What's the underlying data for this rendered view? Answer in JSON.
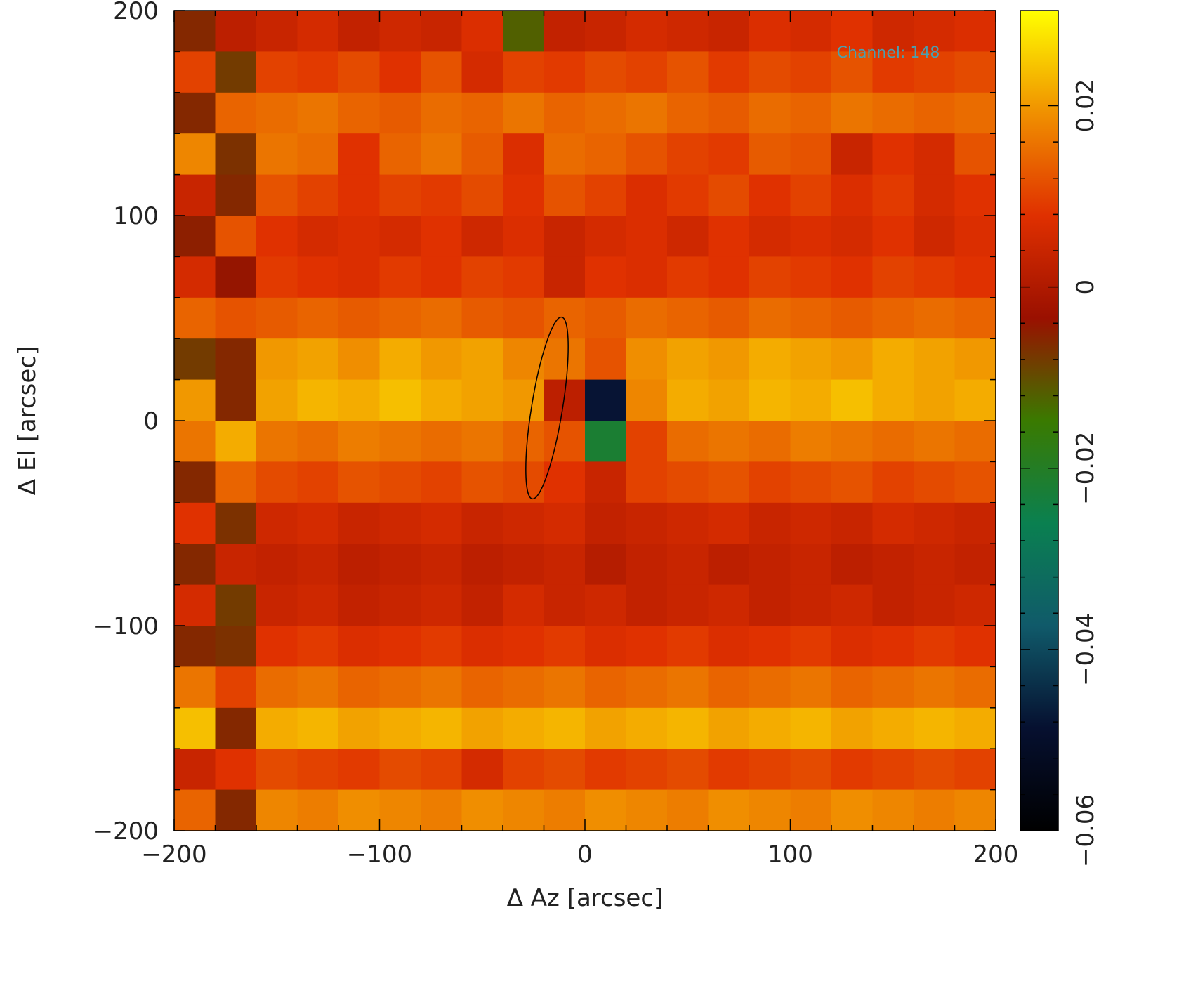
{
  "chart_data": {
    "type": "heatmap",
    "annotation": "Channel: 148",
    "xlabel": "Δ Az [arcsec]",
    "ylabel": "Δ El [arcsec]",
    "x": [
      -190,
      -170,
      -150,
      -130,
      -110,
      -90,
      -70,
      -50,
      -30,
      -10,
      10,
      30,
      50,
      70,
      90,
      110,
      130,
      150,
      170,
      190
    ],
    "y": [
      190,
      170,
      150,
      130,
      110,
      90,
      70,
      50,
      30,
      10,
      -10,
      -30,
      -50,
      -70,
      -90,
      -110,
      -130,
      -150,
      -170,
      -190
    ],
    "xlim": [
      -200,
      200
    ],
    "ylim": [
      -200,
      200
    ],
    "xticks": [
      {
        "value": -200,
        "label": "−200"
      },
      {
        "value": -100,
        "label": "−100"
      },
      0,
      100,
      200
    ],
    "yticks": [
      {
        "value": -200,
        "label": "−200"
      },
      {
        "value": -100,
        "label": "−100"
      },
      0,
      100,
      200
    ],
    "zlim": [
      -0.06,
      0.0305
    ],
    "zticks": [
      {
        "value": -0.06,
        "label": "−0.06"
      },
      {
        "value": -0.04,
        "label": "−0.04"
      },
      {
        "value": -0.02,
        "label": "−0.02"
      },
      0,
      0.02
    ],
    "colormap": [
      "#000000",
      "#061030",
      "#105a6a",
      "#0a8050",
      "#3a7a00",
      "#9a1000",
      "#e03000",
      "#f09000",
      "#ffff00"
    ],
    "values": [
      [
        -0.006,
        0.002,
        0.004,
        0.006,
        0.003,
        0.005,
        0.004,
        0.007,
        -0.012,
        0.003,
        0.004,
        0.006,
        0.005,
        0.004,
        0.007,
        0.006,
        0.008,
        0.005,
        0.006,
        0.007
      ],
      [
        0.01,
        -0.008,
        0.01,
        0.009,
        0.011,
        0.008,
        0.012,
        0.006,
        0.01,
        0.009,
        0.011,
        0.01,
        0.012,
        0.009,
        0.011,
        0.01,
        0.012,
        0.009,
        0.01,
        0.011
      ],
      [
        -0.006,
        0.014,
        0.015,
        0.016,
        0.014,
        0.013,
        0.015,
        0.014,
        0.016,
        0.014,
        0.015,
        0.016,
        0.014,
        0.013,
        0.015,
        0.014,
        0.016,
        0.015,
        0.014,
        0.015
      ],
      [
        0.018,
        -0.007,
        0.016,
        0.015,
        0.008,
        0.014,
        0.016,
        0.013,
        0.007,
        0.015,
        0.014,
        0.012,
        0.01,
        0.009,
        0.013,
        0.012,
        0.004,
        0.008,
        0.006,
        0.012
      ],
      [
        0.004,
        -0.006,
        0.012,
        0.01,
        0.008,
        0.01,
        0.009,
        0.011,
        0.008,
        0.012,
        0.01,
        0.007,
        0.009,
        0.011,
        0.008,
        0.01,
        0.007,
        0.009,
        0.006,
        0.008
      ],
      [
        -0.005,
        0.012,
        0.008,
        0.006,
        0.007,
        0.006,
        0.008,
        0.005,
        0.007,
        0.004,
        0.006,
        0.007,
        0.005,
        0.008,
        0.006,
        0.007,
        0.006,
        0.008,
        0.005,
        0.007
      ],
      [
        0.006,
        -0.004,
        0.009,
        0.008,
        0.007,
        0.009,
        0.008,
        0.01,
        0.009,
        0.004,
        0.008,
        0.007,
        0.009,
        0.008,
        0.01,
        0.009,
        0.008,
        0.01,
        0.009,
        0.008
      ],
      [
        0.014,
        0.012,
        0.013,
        0.014,
        0.013,
        0.014,
        0.015,
        0.013,
        0.012,
        0.014,
        0.013,
        0.015,
        0.014,
        0.013,
        0.015,
        0.014,
        0.013,
        0.014,
        0.015,
        0.014
      ],
      [
        -0.008,
        -0.006,
        0.02,
        0.021,
        0.019,
        0.022,
        0.02,
        0.021,
        0.018,
        0.016,
        0.012,
        0.019,
        0.021,
        0.02,
        0.022,
        0.021,
        0.02,
        0.022,
        0.021,
        0.02
      ],
      [
        0.02,
        -0.006,
        0.021,
        0.023,
        0.022,
        0.024,
        0.022,
        0.021,
        0.02,
        0.002,
        -0.048,
        0.018,
        0.022,
        0.021,
        0.023,
        0.022,
        0.024,
        0.022,
        0.021,
        0.022
      ],
      [
        0.016,
        0.022,
        0.016,
        0.015,
        0.017,
        0.016,
        0.015,
        0.016,
        0.014,
        0.012,
        -0.022,
        0.01,
        0.015,
        0.016,
        0.015,
        0.017,
        0.016,
        0.015,
        0.016,
        0.015
      ],
      [
        -0.006,
        0.014,
        0.011,
        0.01,
        0.012,
        0.011,
        0.01,
        0.012,
        0.011,
        0.008,
        0.004,
        0.01,
        0.011,
        0.012,
        0.01,
        0.011,
        0.012,
        0.01,
        0.011,
        0.012
      ],
      [
        0.008,
        -0.007,
        0.005,
        0.006,
        0.004,
        0.005,
        0.006,
        0.004,
        0.005,
        0.006,
        0.003,
        0.004,
        0.005,
        0.006,
        0.004,
        0.005,
        0.004,
        0.006,
        0.005,
        0.004
      ],
      [
        -0.006,
        0.004,
        0.003,
        0.004,
        0.002,
        0.003,
        0.004,
        0.002,
        0.003,
        0.004,
        0.001,
        0.003,
        0.004,
        0.002,
        0.003,
        0.004,
        0.002,
        0.003,
        0.004,
        0.003
      ],
      [
        0.006,
        -0.008,
        0.004,
        0.005,
        0.003,
        0.004,
        0.005,
        0.003,
        0.006,
        0.004,
        0.005,
        0.003,
        0.004,
        0.005,
        0.003,
        0.004,
        0.005,
        0.003,
        0.004,
        0.005
      ],
      [
        -0.006,
        -0.007,
        0.008,
        0.009,
        0.007,
        0.008,
        0.009,
        0.007,
        0.008,
        0.009,
        0.007,
        0.008,
        0.009,
        0.007,
        0.008,
        0.009,
        0.007,
        0.008,
        0.009,
        0.008
      ],
      [
        0.016,
        0.01,
        0.015,
        0.016,
        0.014,
        0.015,
        0.016,
        0.014,
        0.015,
        0.016,
        0.014,
        0.015,
        0.016,
        0.014,
        0.015,
        0.016,
        0.014,
        0.015,
        0.016,
        0.015
      ],
      [
        0.024,
        -0.006,
        0.022,
        0.023,
        0.021,
        0.022,
        0.023,
        0.021,
        0.022,
        0.023,
        0.021,
        0.022,
        0.023,
        0.021,
        0.022,
        0.023,
        0.021,
        0.022,
        0.023,
        0.022
      ],
      [
        0.004,
        0.008,
        0.011,
        0.01,
        0.009,
        0.011,
        0.01,
        0.006,
        0.01,
        0.011,
        0.009,
        0.01,
        0.011,
        0.009,
        0.01,
        0.011,
        0.009,
        0.01,
        0.011,
        0.01
      ],
      [
        0.014,
        -0.006,
        0.018,
        0.017,
        0.019,
        0.018,
        0.017,
        0.019,
        0.018,
        0.017,
        0.019,
        0.018,
        0.017,
        0.019,
        0.018,
        0.017,
        0.019,
        0.018,
        0.017,
        0.018
      ]
    ]
  }
}
